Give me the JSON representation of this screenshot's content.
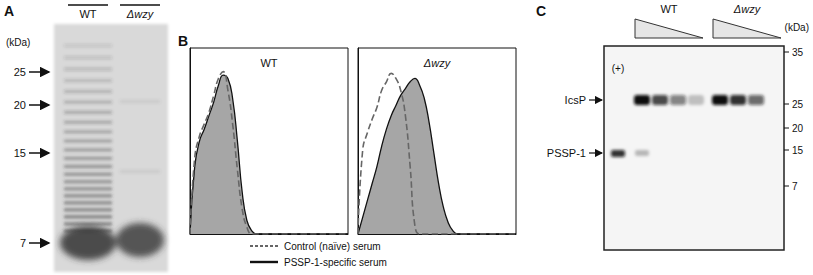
{
  "panel_A": {
    "letter": "A",
    "unit_label": "(kDa)",
    "lanes": [
      "WT",
      "Δwzy"
    ],
    "markers": [
      25,
      20,
      15,
      7
    ]
  },
  "panel_B": {
    "letter": "B"
  },
  "chart_data": [
    {
      "type": "line",
      "title": "WT",
      "x": [
        0,
        3,
        6,
        9,
        12,
        15,
        18,
        21,
        24,
        27,
        30,
        33,
        36,
        39,
        42,
        45,
        48,
        51,
        54,
        57,
        60,
        63,
        66,
        70,
        100
      ],
      "series": [
        {
          "name": "Control (naïve) serum",
          "color": "#666666",
          "line_style": "dashed",
          "values": [
            0,
            45,
            58,
            65,
            72,
            82,
            92,
            96,
            85,
            65,
            38,
            15,
            4,
            0,
            0,
            0,
            0,
            0,
            0,
            0,
            0,
            0,
            0,
            0,
            0
          ]
        },
        {
          "name": "PSSP-1-specific serum",
          "color": "#a6a6a6",
          "line_style": "solid",
          "values": [
            0,
            40,
            55,
            62,
            70,
            78,
            88,
            94,
            92,
            80,
            55,
            25,
            8,
            2,
            0,
            0,
            0,
            0,
            0,
            0,
            0,
            0,
            0,
            0,
            0
          ]
        }
      ],
      "xlim": [
        0,
        100
      ],
      "ylim": [
        0,
        110
      ],
      "tick_labels": false,
      "legend": "bottom"
    },
    {
      "type": "line",
      "title": "Δwzy",
      "x": [
        0,
        3,
        6,
        9,
        12,
        15,
        18,
        21,
        24,
        27,
        30,
        33,
        36,
        39,
        42,
        45,
        48,
        51,
        54,
        57,
        60,
        63,
        66,
        70,
        100
      ],
      "series": [
        {
          "name": "Control (naïve) serum",
          "color": "#666666",
          "line_style": "dashed",
          "values": [
            0,
            50,
            60,
            68,
            75,
            85,
            90,
            95,
            92,
            85,
            70,
            40,
            5,
            0,
            0,
            0,
            0,
            0,
            0,
            0,
            0,
            0,
            0,
            0,
            0
          ]
        },
        {
          "name": "PSSP-1-specific serum",
          "color": "#a6a6a6",
          "line_style": "solid",
          "values": [
            0,
            10,
            20,
            30,
            40,
            52,
            62,
            70,
            76,
            82,
            86,
            90,
            92,
            88,
            80,
            66,
            48,
            30,
            16,
            7,
            2,
            0,
            0,
            0,
            0
          ]
        }
      ],
      "xlim": [
        0,
        100
      ],
      "ylim": [
        0,
        110
      ],
      "tick_labels": false
    }
  ],
  "panel_C": {
    "letter": "C",
    "unit_label": "(kDa)",
    "control_lane": "(+)",
    "lanes": [
      "WT",
      "Δwzy"
    ],
    "bands": [
      "IcsP",
      "PSSP-1"
    ],
    "markers": [
      35,
      25,
      20,
      15,
      7
    ]
  }
}
